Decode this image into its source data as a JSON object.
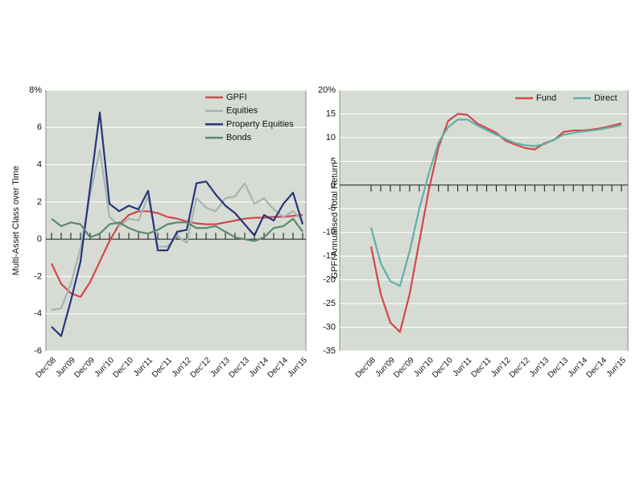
{
  "chart_data": [
    {
      "type": "line",
      "ylabel": "Multi-Asset Class over Time",
      "categories": [
        "Dec'08",
        null,
        "Jun'09",
        null,
        "Dec'09",
        null,
        "Jun'10",
        null,
        "Dec'10",
        null,
        "Jun'11",
        null,
        "Dec'11",
        null,
        "Jun'12",
        null,
        "Dec'12",
        null,
        "Jun'13",
        null,
        "Dec'13",
        null,
        "Jun'14",
        null,
        "Dec'14",
        null,
        "Jun'15"
      ],
      "series": [
        {
          "name": "GPFI",
          "color": "#d4474a",
          "values": [
            -1.3,
            -2.4,
            -2.9,
            -3.1,
            -2.3,
            -1.2,
            -0.1,
            0.8,
            1.3,
            1.5,
            1.5,
            1.4,
            1.2,
            1.1,
            0.95,
            0.85,
            0.8,
            0.8,
            0.9,
            1.0,
            1.1,
            1.15,
            1.15,
            1.2,
            1.2,
            1.25,
            1.3
          ]
        },
        {
          "name": "Equities",
          "color": "#a3b4b4",
          "values": [
            -3.8,
            -3.7,
            -2.4,
            -0.5,
            2.4,
            4.8,
            1.2,
            0.7,
            1.1,
            1.0,
            2.3,
            -0.4,
            -0.4,
            0.2,
            -0.2,
            2.2,
            1.7,
            1.5,
            2.2,
            2.3,
            3.0,
            1.9,
            2.2,
            1.6,
            1.2,
            1.5,
            1.0
          ]
        },
        {
          "name": "Property Equities",
          "color": "#27357a",
          "values": [
            -4.7,
            -5.2,
            -3.3,
            -1.2,
            2.8,
            6.8,
            1.9,
            1.5,
            1.8,
            1.6,
            2.6,
            -0.6,
            -0.6,
            0.4,
            0.5,
            3.0,
            3.1,
            2.4,
            1.8,
            1.4,
            0.8,
            0.2,
            1.3,
            1.0,
            1.9,
            2.5,
            0.8
          ]
        },
        {
          "name": "Bonds",
          "color": "#5b8a6c",
          "values": [
            1.1,
            0.7,
            0.9,
            0.8,
            0.1,
            0.3,
            0.8,
            0.9,
            0.6,
            0.4,
            0.3,
            0.5,
            0.8,
            0.9,
            0.9,
            0.6,
            0.6,
            0.7,
            0.4,
            0.1,
            0.0,
            -0.1,
            0.1,
            0.6,
            0.7,
            1.1,
            0.4
          ]
        }
      ],
      "ylim": [
        -6,
        8
      ],
      "yticks": [
        {
          "value": 8,
          "label": "8%"
        },
        6,
        4,
        2,
        0,
        -2,
        -4,
        -6
      ],
      "grid": true,
      "legend": "upper right"
    },
    {
      "type": "line",
      "ylabel": "GPFI Annualised Total Return",
      "categories": [
        "Dec'08",
        null,
        "Jun'09",
        null,
        "Dec'09",
        null,
        "Jun'10",
        null,
        "Dec'10",
        null,
        "Jun'11",
        null,
        "Dec'11",
        null,
        "Jun'12",
        null,
        "Dec'12",
        null,
        "Jun'13",
        null,
        "Dec'13",
        null,
        "Jun'14",
        null,
        "Dec'14",
        null,
        "Jun'15"
      ],
      "series": [
        {
          "name": "Fund",
          "color": "#d4474a",
          "values": [
            -13,
            -23,
            -29,
            -31,
            -23,
            -12,
            -1,
            8,
            13.5,
            15,
            14.8,
            13,
            12,
            11,
            9.3,
            8.5,
            7.8,
            7.5,
            8.8,
            9.5,
            11.2,
            11.5,
            11.5,
            11.7,
            12,
            12.5,
            13
          ]
        },
        {
          "name": "Direct",
          "color": "#5fb0a8",
          "values": [
            -9,
            -16.5,
            -20.3,
            -21.3,
            -14,
            -5,
            2.5,
            9,
            12.2,
            13.8,
            13.8,
            12.6,
            11.6,
            10.6,
            9.7,
            8.8,
            8.4,
            8.2,
            8.6,
            9.6,
            10.6,
            11,
            11.3,
            11.5,
            11.8,
            12.2,
            12.6
          ]
        }
      ],
      "ylim": [
        -35,
        20
      ],
      "yticks": [
        {
          "value": 20,
          "label": "20%"
        },
        15,
        10,
        5,
        0,
        -5,
        -10,
        -15,
        -20,
        -25,
        -30,
        -35
      ],
      "grid": true,
      "legend": "upper right"
    }
  ]
}
